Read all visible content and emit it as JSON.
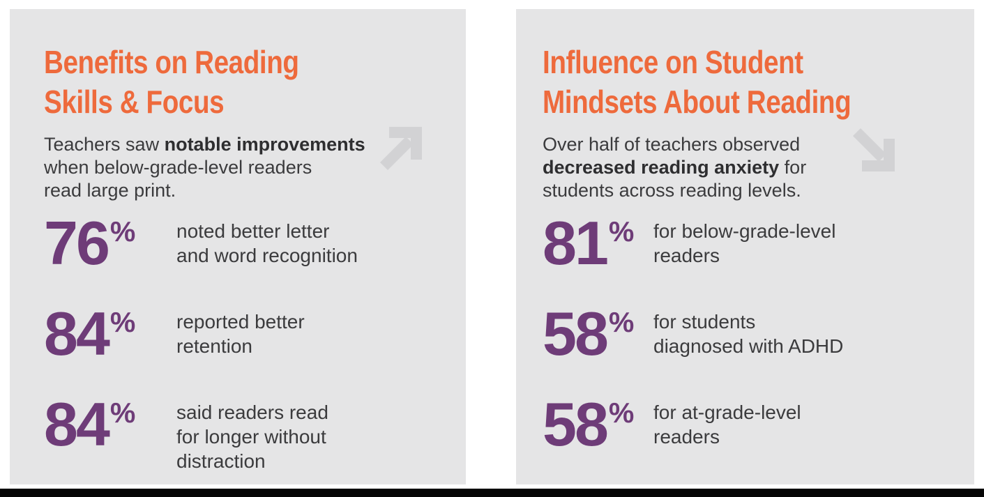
{
  "colors": {
    "accent_orange": "#EE6A3C",
    "stat_purple": "#6E3C78",
    "panel_gray": "#E5E5E6",
    "arrow_gray": "#D2D2D4",
    "text_dark": "#3B3B3D",
    "bottom_bar_black": "#060606",
    "page_background": "#FFFFFF"
  },
  "left_panel": {
    "title_lines": [
      "Benefits on Reading",
      "Skills & Focus"
    ],
    "subtitle_lines": [
      [
        {
          "t": "Teachers saw ",
          "b": false
        },
        {
          "t": "notable improvements",
          "b": true
        }
      ],
      [
        {
          "t": "when below-grade-level readers",
          "b": false
        }
      ],
      [
        {
          "t": "read large print.",
          "b": false
        }
      ]
    ],
    "icon": "arrow-up-right",
    "stats": [
      {
        "value": "76",
        "unit": "%",
        "label_lines": [
          "noted better letter",
          "and word recognition"
        ]
      },
      {
        "value": "84",
        "unit": "%",
        "label_lines": [
          "reported better",
          "retention"
        ]
      },
      {
        "value": "84",
        "unit": "%",
        "label_lines": [
          "said readers read",
          "for longer without",
          "distraction"
        ]
      }
    ]
  },
  "right_panel": {
    "title_lines": [
      "Influence on Student",
      "Mindsets About Reading"
    ],
    "subtitle_lines": [
      [
        {
          "t": "Over half of teachers observed",
          "b": false
        }
      ],
      [
        {
          "t": "decreased reading anxiety",
          "b": true
        },
        {
          "t": " for",
          "b": false
        }
      ],
      [
        {
          "t": "students across reading levels.",
          "b": false
        }
      ]
    ],
    "icon": "arrow-down-right",
    "stats": [
      {
        "value": "81",
        "unit": "%",
        "label_lines": [
          "for below-grade-level",
          "readers"
        ]
      },
      {
        "value": "58",
        "unit": "%",
        "label_lines": [
          "for students",
          "diagnosed with ADHD"
        ]
      },
      {
        "value": "58",
        "unit": "%",
        "label_lines": [
          "for at-grade-level",
          "readers"
        ]
      }
    ]
  }
}
